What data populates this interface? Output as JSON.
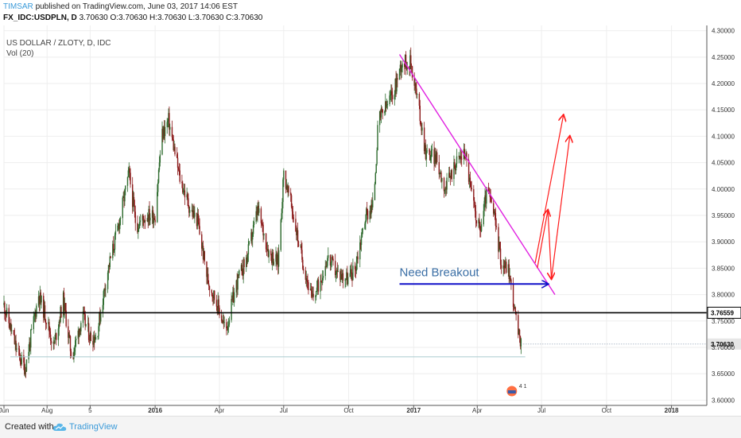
{
  "header": {
    "user": "TIMSAR",
    "published_text": "published on TradingView.com, June 03, 2017 14:06 EST",
    "symbol": "FX_IDC:USDPLN, D",
    "ohlc": "3.70630 O:3.70630 H:3.70630 L:3.70630 C:3.70630"
  },
  "footer": {
    "created_with": "Created with",
    "brand": "TradingView"
  },
  "colors": {
    "up": "#2e6b2e",
    "down": "#8b1a1a",
    "trendline": "#e020e0",
    "support": "#000000",
    "breakout_arrow": "#1010c8",
    "target_arrows": "#ff1a1a",
    "grid": "#eeeeee",
    "price_tag": "#e6e6e6"
  },
  "chart_data": {
    "type": "candlestick",
    "title": "US DOLLAR / ZLOTY, D, IDC",
    "indicator": "Vol (20)",
    "ylim": [
      3.59,
      4.31
    ],
    "yticks": [
      3.6,
      3.65,
      3.7,
      3.75,
      3.8,
      3.85,
      3.9,
      3.95,
      4.0,
      4.05,
      4.1,
      4.15,
      4.2,
      4.25,
      4.3
    ],
    "ytick_labels": [
      "3.60000",
      "3.65000",
      "3.70000",
      "3.75000",
      "3.80000",
      "3.85000",
      "3.90000",
      "3.95000",
      "4.00000",
      "4.05000",
      "4.10000",
      "4.15000",
      "4.20000",
      "4.25000",
      "4.30000"
    ],
    "xrange": [
      "2015-06-01",
      "2018-02-20"
    ],
    "xticks": [
      {
        "date": "2015-06-01",
        "label": "Jun"
      },
      {
        "date": "2015-08-01",
        "label": "Aug"
      },
      {
        "date": "2015-10-01",
        "label": "5"
      },
      {
        "date": "2016-01-01",
        "label": "2016"
      },
      {
        "date": "2016-04-01",
        "label": "Apr"
      },
      {
        "date": "2016-07-01",
        "label": "Jul"
      },
      {
        "date": "2016-10-01",
        "label": "Oct"
      },
      {
        "date": "2017-01-01",
        "label": "2017"
      },
      {
        "date": "2017-04-01",
        "label": "Apr"
      },
      {
        "date": "2017-07-01",
        "label": "Jul"
      },
      {
        "date": "2017-10-01",
        "label": "Oct"
      },
      {
        "date": "2018-01-01",
        "label": "2018"
      }
    ],
    "price_path": [
      [
        "2015-06-01",
        3.78
      ],
      [
        "2015-06-20",
        3.69
      ],
      [
        "2015-07-01",
        3.66
      ],
      [
        "2015-07-20",
        3.8
      ],
      [
        "2015-08-01",
        3.75
      ],
      [
        "2015-08-10",
        3.7
      ],
      [
        "2015-08-24",
        3.79
      ],
      [
        "2015-09-05",
        3.68
      ],
      [
        "2015-09-20",
        3.76
      ],
      [
        "2015-10-01",
        3.72
      ],
      [
        "2015-10-10",
        3.72
      ],
      [
        "2015-10-25",
        3.84
      ],
      [
        "2015-11-10",
        3.93
      ],
      [
        "2015-11-25",
        4.03
      ],
      [
        "2015-12-05",
        3.93
      ],
      [
        "2015-12-20",
        3.95
      ],
      [
        "2016-01-01",
        3.95
      ],
      [
        "2016-01-10",
        4.1
      ],
      [
        "2016-01-20",
        4.13
      ],
      [
        "2016-02-05",
        4.02
      ],
      [
        "2016-02-20",
        3.96
      ],
      [
        "2016-03-01",
        3.94
      ],
      [
        "2016-03-15",
        3.83
      ],
      [
        "2016-04-01",
        3.77
      ],
      [
        "2016-04-10",
        3.73
      ],
      [
        "2016-04-25",
        3.82
      ],
      [
        "2016-05-10",
        3.87
      ],
      [
        "2016-05-25",
        3.96
      ],
      [
        "2016-06-10",
        3.88
      ],
      [
        "2016-06-23",
        3.86
      ],
      [
        "2016-07-01",
        4.03
      ],
      [
        "2016-07-10",
        3.98
      ],
      [
        "2016-07-25",
        3.88
      ],
      [
        "2016-08-10",
        3.79
      ],
      [
        "2016-08-20",
        3.82
      ],
      [
        "2016-09-01",
        3.87
      ],
      [
        "2016-09-15",
        3.84
      ],
      [
        "2016-10-01",
        3.83
      ],
      [
        "2016-10-10",
        3.85
      ],
      [
        "2016-10-25",
        3.95
      ],
      [
        "2016-11-05",
        3.97
      ],
      [
        "2016-11-12",
        4.13
      ],
      [
        "2016-11-25",
        4.16
      ],
      [
        "2016-12-05",
        4.19
      ],
      [
        "2016-12-15",
        4.24
      ],
      [
        "2016-12-28",
        4.24
      ],
      [
        "2017-01-05",
        4.18
      ],
      [
        "2017-01-18",
        4.07
      ],
      [
        "2017-02-01",
        4.06
      ],
      [
        "2017-02-15",
        4.0
      ],
      [
        "2017-03-01",
        4.05
      ],
      [
        "2017-03-15",
        4.07
      ],
      [
        "2017-03-25",
        3.98
      ],
      [
        "2017-04-05",
        3.92
      ],
      [
        "2017-04-15",
        4.0
      ],
      [
        "2017-04-25",
        3.95
      ],
      [
        "2017-05-05",
        3.86
      ],
      [
        "2017-05-15",
        3.85
      ],
      [
        "2017-05-22",
        3.79
      ],
      [
        "2017-05-28",
        3.73
      ],
      [
        "2017-06-02",
        3.706
      ]
    ],
    "levels": [
      {
        "name": "support",
        "value": 3.76559,
        "label": "3.76559"
      },
      {
        "name": "last-price",
        "value": 3.7063,
        "label": "3.70630"
      }
    ],
    "annotations": {
      "trendline": [
        [
          "2016-12-12",
          4.255
        ],
        [
          "2017-07-20",
          3.8
        ]
      ],
      "breakout_text": "Need Breakout",
      "breakout_arrow": [
        [
          "2016-12-12",
          3.82
        ],
        [
          "2017-07-10",
          3.82
        ]
      ],
      "target_path": [
        [
          "2017-06-25",
          3.85
        ],
        [
          "2017-07-10",
          3.96
        ],
        [
          "2017-07-15",
          3.83
        ],
        [
          "2017-08-10",
          4.1
        ]
      ],
      "target_arrow_2": [
        [
          "2017-06-22",
          3.86
        ],
        [
          "2017-08-01",
          4.14
        ]
      ]
    },
    "event_flag_text": "4 1"
  }
}
